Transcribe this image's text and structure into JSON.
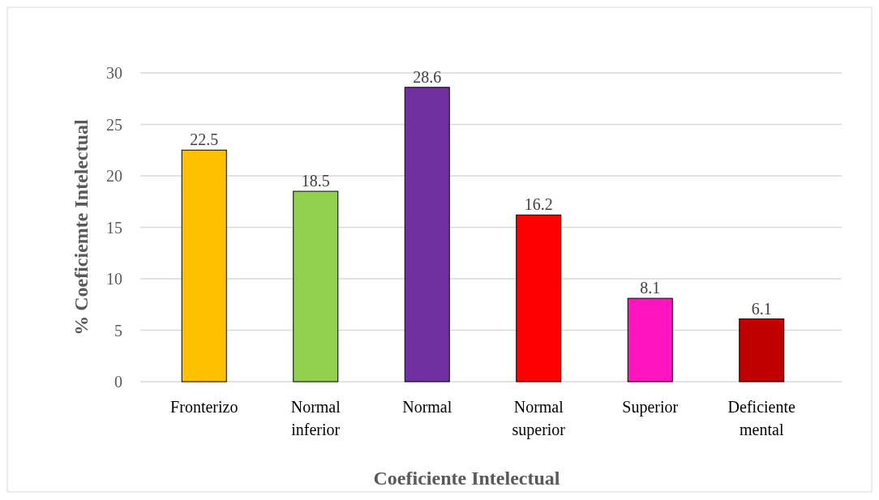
{
  "chart_data": {
    "type": "bar",
    "categories": [
      "Fronterizo",
      "Normal inferior",
      "Normal",
      "Normal superior",
      "Superior",
      "Deficiente mental"
    ],
    "values": [
      22.5,
      18.5,
      28.6,
      16.2,
      8.1,
      6.1
    ],
    "colors": [
      "#ffc000",
      "#92d050",
      "#7030a0",
      "#ff0000",
      "#ff14c0",
      "#c00000"
    ],
    "ylim": [
      0,
      30
    ],
    "yticks": [
      0,
      5,
      10,
      15,
      20,
      25,
      30
    ],
    "grid": "y",
    "data_labels": true,
    "xlabel": "Coeficiente Intelectual",
    "ylabel": "% Coeficiemte Intelectual"
  }
}
